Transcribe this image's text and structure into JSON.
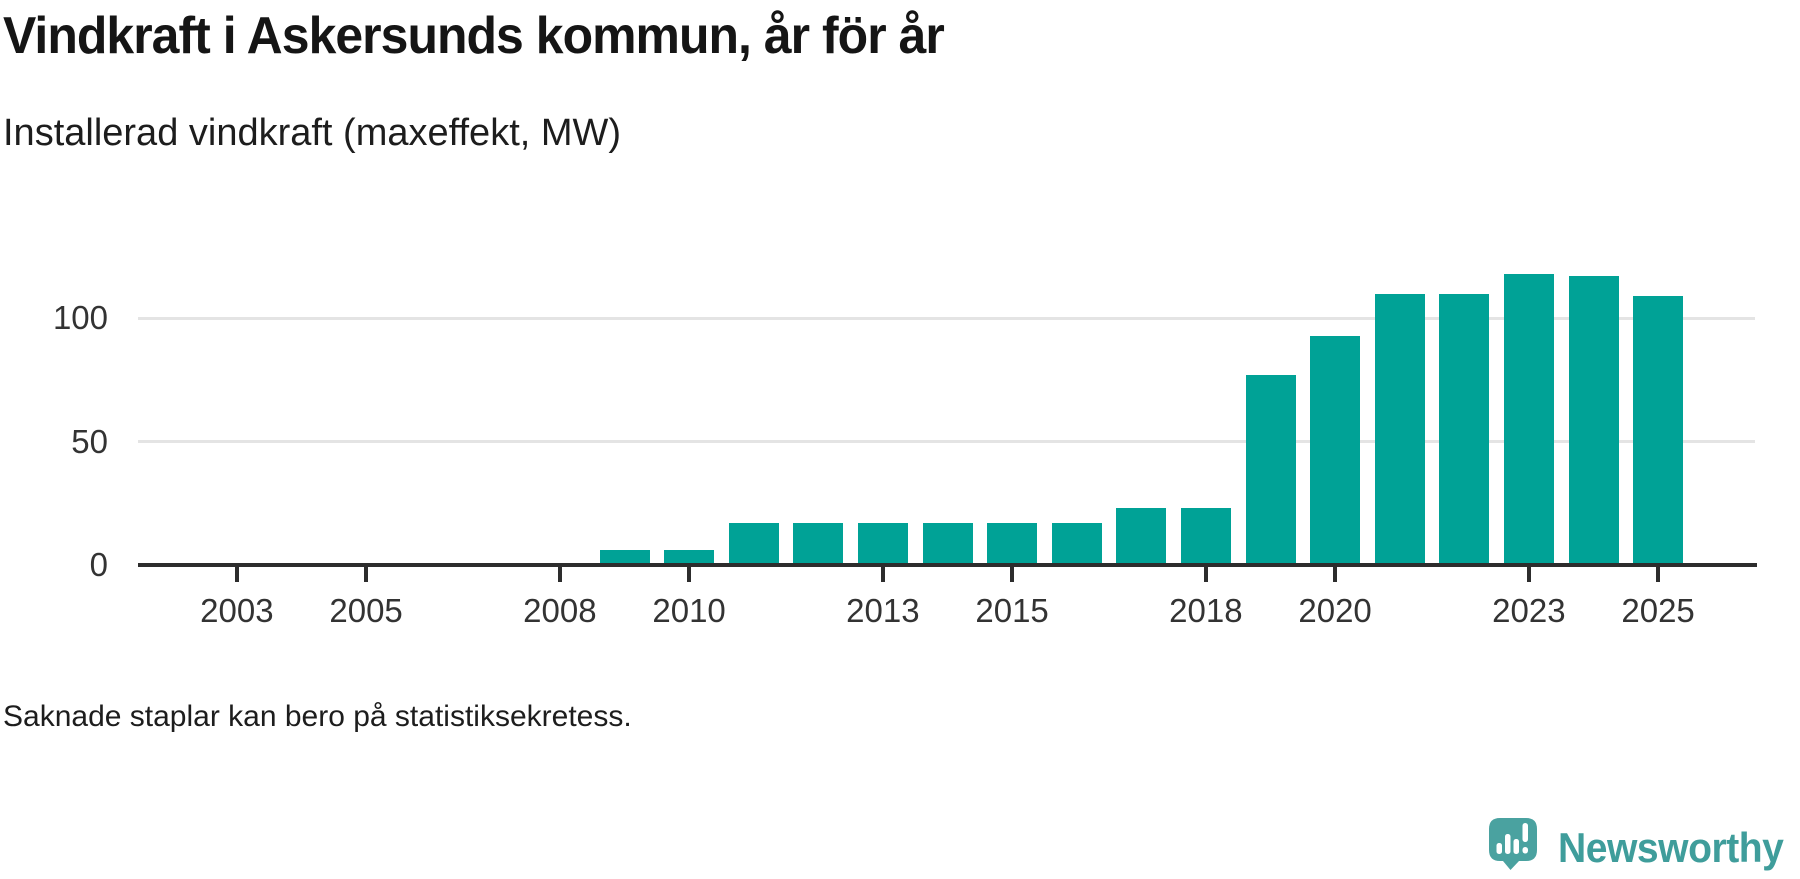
{
  "header": {
    "title": "Vindkraft i Askersunds kommun, år för år",
    "subtitle": "Installerad vindkraft (maxeffekt, MW)"
  },
  "footnote": "Saknade staplar kan bero på statistiksekretess.",
  "branding": {
    "wordmark": "Newsworthy",
    "logo_icon": "speech-bubble-with-bar-chart-and-exclamation"
  },
  "colors": {
    "bar": "#00a296",
    "axis": "#2d2d2d",
    "grid": "#e4e4e4",
    "tick_text": "#333333",
    "title_text": "#151515",
    "logo_teal": "#4aa2a0",
    "wordmark_teal": "#3f9d9b"
  },
  "chart_data": {
    "type": "bar",
    "title": "Vindkraft i Askersunds kommun, år för år",
    "subtitle": "Installerad vindkraft (maxeffekt, MW)",
    "note": "Saknade staplar kan bero på statistiksekretess.",
    "unit": "MW",
    "years": [
      2009,
      2010,
      2011,
      2012,
      2013,
      2014,
      2015,
      2016,
      2017,
      2018,
      2019,
      2020,
      2021,
      2022,
      2023,
      2024,
      2025
    ],
    "values": [
      6,
      6,
      17,
      17,
      17,
      17,
      17,
      17,
      23,
      23,
      77,
      93,
      110,
      110,
      118,
      117,
      109
    ],
    "years_without_bars": [
      2002,
      2003,
      2004,
      2005,
      2006,
      2007,
      2008,
      2026
    ],
    "x_domain": [
      2002,
      2026
    ],
    "x_ticks": [
      2003,
      2005,
      2008,
      2010,
      2013,
      2015,
      2018,
      2020,
      2023,
      2025
    ],
    "y_ticks": [
      0,
      50,
      100
    ],
    "ylim": [
      0,
      130
    ],
    "grid": "horizontal",
    "legend": false,
    "bar_color": "#00a296"
  }
}
